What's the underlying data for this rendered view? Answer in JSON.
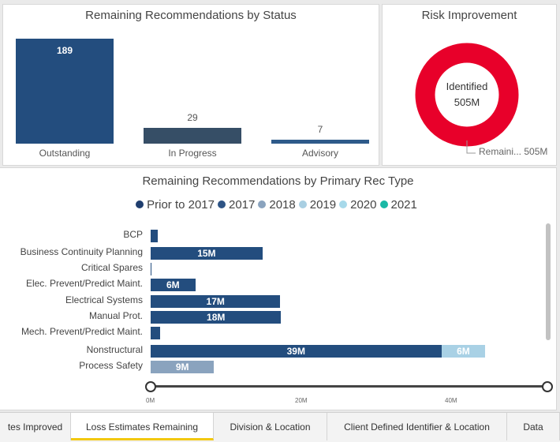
{
  "status_panel": {
    "title": "Remaining Recommendations by Status"
  },
  "risk_panel": {
    "title": "Risk Improvement",
    "center_label": "Identified",
    "center_value": "505M",
    "leader_label": "Remaini... 505M",
    "donut_color": "#e8002a"
  },
  "rec_panel": {
    "title": "Remaining Recommendations by Primary Rec Type",
    "legend": [
      {
        "label": "Prior to 2017",
        "color": "#1f3e6e"
      },
      {
        "label": "2017",
        "color": "#2e5485"
      },
      {
        "label": "2018",
        "color": "#8aa3be"
      },
      {
        "label": "2019",
        "color": "#a9cfe2"
      },
      {
        "label": "2020",
        "color": "#a7d9ea"
      },
      {
        "label": "2021",
        "color": "#1ab8a5"
      }
    ]
  },
  "chart_data": [
    {
      "type": "bar",
      "title": "Remaining Recommendations by Status",
      "categories": [
        "Outstanding",
        "In Progress",
        "Advisory"
      ],
      "values": [
        189,
        29,
        7
      ],
      "labels": [
        "189",
        "29",
        "7"
      ],
      "colors": [
        "#234d7e",
        "#364e66",
        "#2e5a8a"
      ]
    },
    {
      "type": "pie",
      "title": "Risk Improvement",
      "categories": [
        "Remaining"
      ],
      "values": [
        505
      ],
      "center_label": "Identified 505M"
    },
    {
      "type": "bar",
      "orientation": "horizontal",
      "stacked": true,
      "title": "Remaining Recommendations by Primary Rec Type",
      "categories": [
        "BCP",
        "Business Continuity Planning",
        "Critical Spares",
        "Elec. Prevent/Predict Maint.",
        "Electrical Systems",
        "Manual Prot.",
        "Mech. Prevent/Predict Maint.",
        "Nonstructural",
        "Process Safety"
      ],
      "series": [
        {
          "name": "2017",
          "values": [
            1,
            15,
            0.1,
            6,
            17.4,
            17.5,
            1.3,
            39,
            0
          ],
          "labels": [
            "",
            "15M",
            "",
            "6M",
            "17M",
            "18M",
            "",
            "39M",
            ""
          ],
          "color": "#234d7e"
        },
        {
          "name": "2018",
          "values": [
            0,
            0,
            0,
            0,
            0,
            0,
            0,
            0,
            8.5
          ],
          "labels": [
            "",
            "",
            "",
            "",
            "",
            "",
            "",
            "",
            "9M"
          ],
          "color": "#8aa3be"
        },
        {
          "name": "2019",
          "values": [
            0,
            0,
            0,
            0,
            0,
            0,
            0,
            5.9,
            0
          ],
          "labels": [
            "",
            "",
            "",
            "",
            "",
            "",
            "",
            "6M",
            ""
          ],
          "color": "#a9d1e5"
        }
      ],
      "xticks": [
        "0M",
        "20M",
        "40M"
      ],
      "xlim": [
        0,
        53
      ]
    }
  ],
  "tabs": [
    {
      "label": "tes Improved",
      "active": false
    },
    {
      "label": "Loss Estimates Remaining",
      "active": true
    },
    {
      "label": "Division & Location",
      "active": false
    },
    {
      "label": "Client Defined Identifier & Location",
      "active": false
    },
    {
      "label": "Data",
      "active": false
    }
  ]
}
